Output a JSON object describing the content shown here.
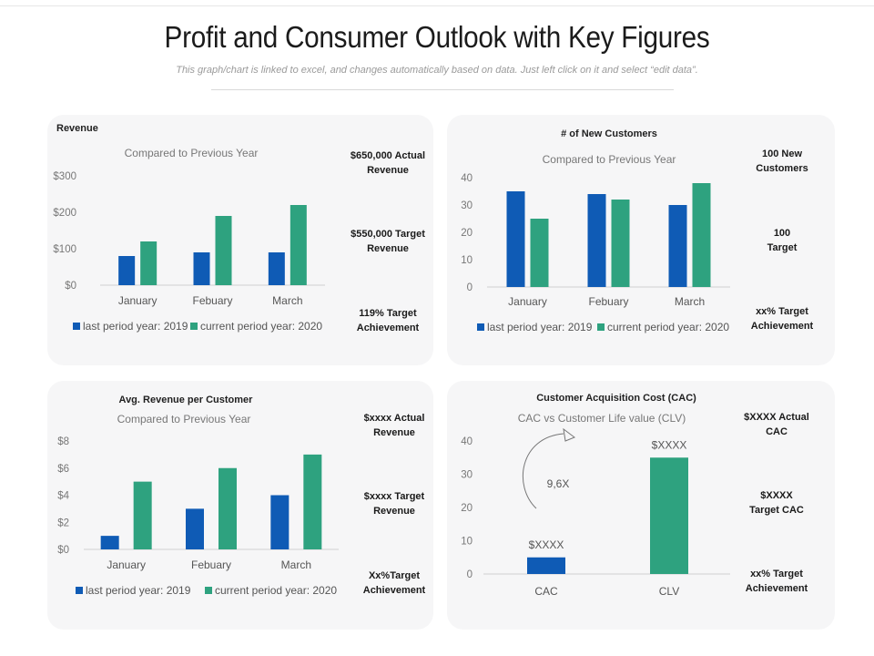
{
  "header": {
    "title": "Profit and Consumer Outlook with Key Figures",
    "subtitle": "This graph/chart is linked to excel, and changes automatically based on data. Just left click on it and select “edit data”."
  },
  "colors": {
    "series_2019": "#0f5bb5",
    "series_2020": "#2ea27f",
    "axis": "#d0d0d0"
  },
  "kpis": {
    "revenue": [
      "$650,000 Actual\nRevenue",
      "$550,000 Target\nRevenue",
      "119% Target\nAchievement"
    ],
    "customers": [
      "100 New\nCustomers",
      "100\nTarget",
      "xx% Target\nAchievement"
    ],
    "avg_revenue": [
      "$xxxx Actual\nRevenue",
      "$xxxx Target\nRevenue",
      "Xx%Target\nAchievement"
    ],
    "cac": [
      "$XXXX Actual\nCAC",
      "$XXXX\nTarget CAC",
      "xx% Target\nAchievement"
    ]
  },
  "chart_data": [
    {
      "type": "bar",
      "title": "Revenue",
      "subtitle": "Compared to Previous Year",
      "categories": [
        "January",
        "Febuary",
        "March"
      ],
      "series": [
        {
          "name": "last period year: 2019",
          "values": [
            80,
            90,
            90
          ]
        },
        {
          "name": "current period year: 2020",
          "values": [
            120,
            190,
            220
          ]
        }
      ],
      "yticks": [
        "$0",
        "$100",
        "$200",
        "$300"
      ],
      "ylim": [
        0,
        300
      ]
    },
    {
      "type": "bar",
      "title": "# of New Customers",
      "subtitle": "Compared to Previous Year",
      "categories": [
        "January",
        "Febuary",
        "March"
      ],
      "series": [
        {
          "name": "last period year: 2019",
          "values": [
            35,
            34,
            30
          ]
        },
        {
          "name": "current period year: 2020",
          "values": [
            25,
            32,
            38
          ]
        }
      ],
      "yticks": [
        "0",
        "10",
        "20",
        "30",
        "40"
      ],
      "ylim": [
        0,
        40
      ]
    },
    {
      "type": "bar",
      "title": "Avg. Revenue per Customer",
      "subtitle": "Compared to Previous Year",
      "categories": [
        "January",
        "Febuary",
        "March"
      ],
      "series": [
        {
          "name": "last period year: 2019",
          "values": [
            1,
            3,
            4
          ]
        },
        {
          "name": "current period year: 2020",
          "values": [
            5,
            6,
            7
          ]
        }
      ],
      "yticks": [
        "$0",
        "$2",
        "$4",
        "$6",
        "$8"
      ],
      "ylim": [
        0,
        8
      ]
    },
    {
      "type": "bar",
      "title": "Customer Acquisition Cost (CAC)",
      "subtitle": "CAC vs Customer Life value (CLV)",
      "categories": [
        "CAC",
        "CLV"
      ],
      "values": [
        5,
        35
      ],
      "data_labels": [
        "$XXXX",
        "$XXXX"
      ],
      "annotation": "9,6X",
      "yticks": [
        "0",
        "10",
        "20",
        "30",
        "40"
      ],
      "ylim": [
        0,
        40
      ]
    }
  ]
}
